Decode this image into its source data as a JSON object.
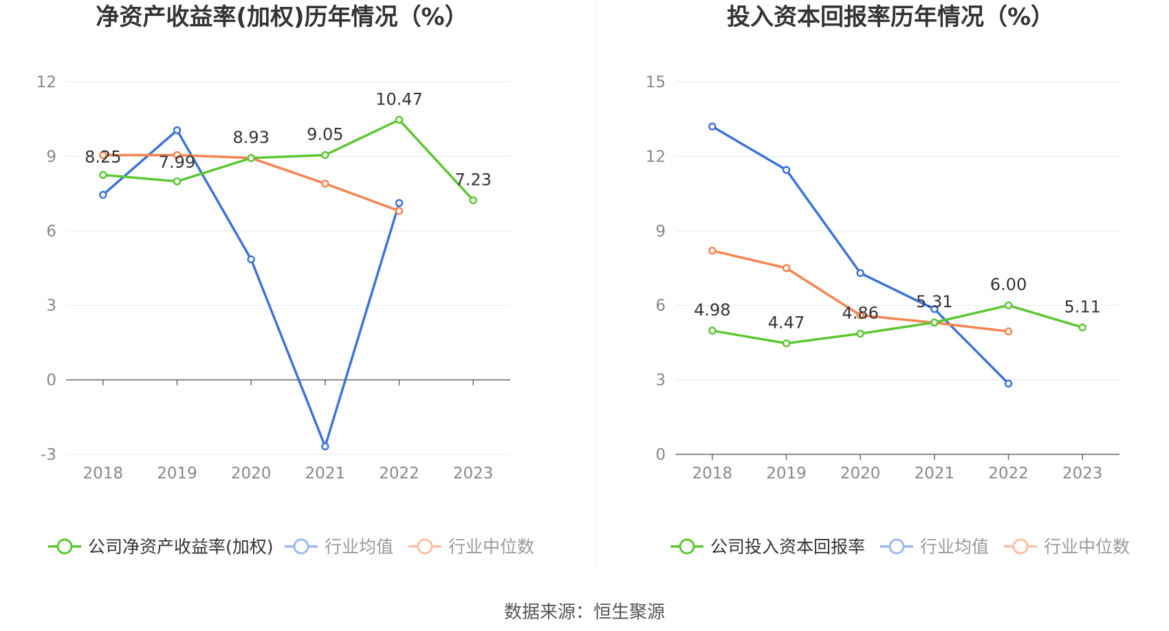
{
  "source_label": "数据来源：恒生聚源",
  "colors": {
    "company": "#5cc632",
    "avg": "#3b73dc",
    "median": "#f5844f",
    "grid": "#e0e6f1",
    "axis": "#666666",
    "tick": "#888888",
    "title": "#333333"
  },
  "chart_data": [
    {
      "type": "line",
      "title": "净资产收益率(加权)历年情况（%）",
      "categories": [
        "2018",
        "2019",
        "2020",
        "2021",
        "2022",
        "2023"
      ],
      "ylim": [
        -3,
        12
      ],
      "yticks": [
        -3,
        0,
        3,
        6,
        9,
        12
      ],
      "grid": true,
      "legend_position": "bottom",
      "series": [
        {
          "name": "公司净资产收益率(加权)",
          "values": [
            8.25,
            7.99,
            8.93,
            9.05,
            10.47,
            7.23
          ],
          "labels": [
            "8.25",
            "7.99",
            "8.93",
            "9.05",
            "10.47",
            "7.23"
          ],
          "color_key": "company"
        },
        {
          "name": "行业均值",
          "values": [
            7.45,
            10.05,
            4.85,
            -2.68,
            7.12,
            null
          ],
          "color_key": "avg"
        },
        {
          "name": "行业中位数",
          "values": [
            9.05,
            9.05,
            8.93,
            7.9,
            6.8,
            null
          ],
          "color_key": "median"
        }
      ]
    },
    {
      "type": "line",
      "title": "投入资本回报率历年情况（%）",
      "categories": [
        "2018",
        "2019",
        "2020",
        "2021",
        "2022",
        "2023"
      ],
      "ylim": [
        0,
        15
      ],
      "yticks": [
        0,
        3,
        6,
        9,
        12,
        15
      ],
      "grid": true,
      "legend_position": "bottom",
      "series": [
        {
          "name": "公司投入资本回报率",
          "values": [
            4.98,
            4.47,
            4.86,
            5.31,
            6.0,
            5.11
          ],
          "labels": [
            "4.98",
            "4.47",
            "4.86",
            "5.31",
            "6.00",
            "5.11"
          ],
          "color_key": "company"
        },
        {
          "name": "行业均值",
          "values": [
            13.2,
            11.45,
            7.3,
            5.85,
            2.85,
            null
          ],
          "color_key": "avg"
        },
        {
          "name": "行业中位数",
          "values": [
            8.2,
            7.5,
            5.6,
            5.3,
            4.95,
            null
          ],
          "color_key": "median"
        }
      ]
    }
  ]
}
